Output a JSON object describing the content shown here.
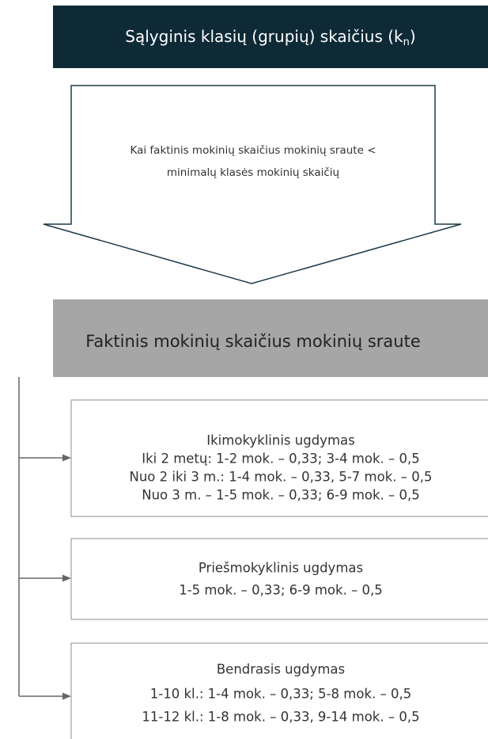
{
  "header": {
    "title": {
      "main": "Sąlyginis klasių (grupių) skaičius (k",
      "sub": "n",
      "end": ")"
    }
  },
  "condition": {
    "lines": [
      "Kai faktinis mokinių skaičius mokinių sraute <",
      "minimalų klasės mokinių skaičių"
    ]
  },
  "source": {
    "label": "Faktinis mokinių skaičius mokinių sraute"
  },
  "branches": [
    {
      "lines": [
        "Ikimokyklinis ugdymas",
        "Iki 2 metų: 1-2 mok. – 0,33; 3-4 mok. – 0,5",
        "Nuo 2 iki 3 m.: 1-4 mok. – 0,33, 5-7 mok. – 0,5",
        "Nuo 3 m. – 1-5 mok. – 0,33; 6-9 mok. – 0,5"
      ]
    },
    {
      "lines": [
        "Priešmokyklinis ugdymas",
        "1-5 mok. – 0,33; 6-9 mok. – 0,5"
      ]
    },
    {
      "lines": [
        "Bendrasis ugdymas",
        "1-10 kl.: 1-4 mok. – 0,33; 5-8 mok. – 0,5",
        "11-12 kl.: 1-8 mok. – 0,33, 9-14 mok. – 0,5"
      ]
    }
  ]
}
